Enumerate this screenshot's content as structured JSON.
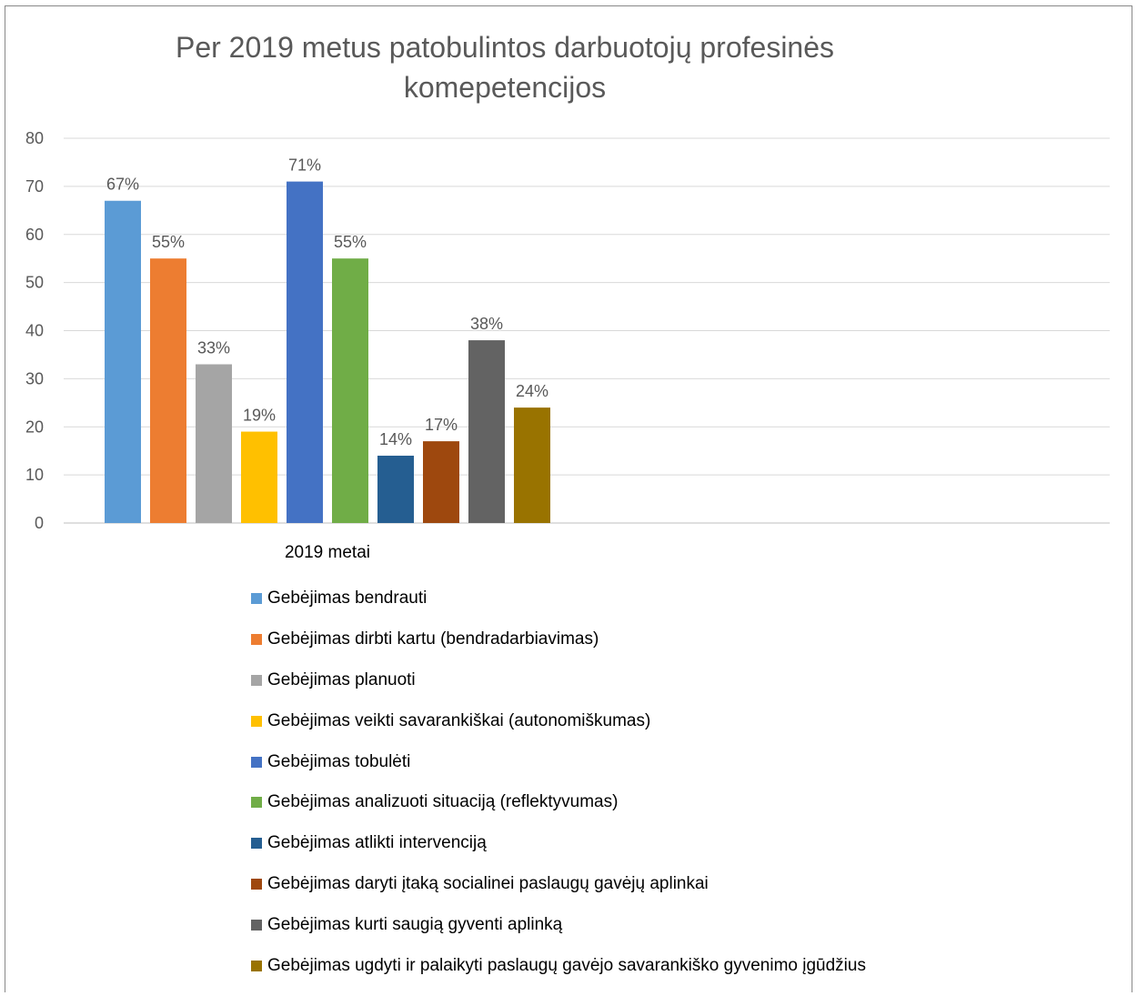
{
  "chart_data": {
    "type": "bar",
    "title": "Per 2019 metus patobulintos darbuotojų profesinės komepetencijos",
    "categories": [
      "2019 metai"
    ],
    "ylim": [
      0,
      80
    ],
    "yticks": [
      0,
      10,
      20,
      30,
      40,
      50,
      60,
      70,
      80
    ],
    "grid": true,
    "legend_position": "bottom",
    "series": [
      {
        "name": "Gebėjimas bendrauti",
        "values": [
          67
        ],
        "label": "67%",
        "color": "#5b9bd5"
      },
      {
        "name": "Gebėjimas dirbti kartu (bendradarbiavimas)",
        "values": [
          55
        ],
        "label": "55%",
        "color": "#ed7d31"
      },
      {
        "name": "Gebėjimas planuoti",
        "values": [
          33
        ],
        "label": "33%",
        "color": "#a5a5a5"
      },
      {
        "name": "Gebėjimas veikti savarankiškai (autonomiškumas)",
        "values": [
          19
        ],
        "label": "19%",
        "color": "#ffc000"
      },
      {
        "name": "Gebėjimas tobulėti",
        "values": [
          71
        ],
        "label": "71%",
        "color": "#4472c4"
      },
      {
        "name": "Gebėjimas analizuoti situaciją (reflektyvumas)",
        "values": [
          55
        ],
        "label": "55%",
        "color": "#70ad47"
      },
      {
        "name": "Gebėjimas atlikti intervenciją",
        "values": [
          14
        ],
        "label": "14%",
        "color": "#255e91"
      },
      {
        "name": "Gebėjimas daryti įtaką socialinei paslaugų gavėjų  aplinkai",
        "values": [
          17
        ],
        "label": "17%",
        "color": "#9e480e"
      },
      {
        "name": "Gebėjimas kurti saugią gyventi aplinką",
        "values": [
          38
        ],
        "label": "38%",
        "color": "#636363"
      },
      {
        "name": "Gebėjimas ugdyti ir palaikyti paslaugų gavėjo savarankiško gyvenimo įgūdžius",
        "values": [
          24
        ],
        "label": "24%",
        "color": "#997300"
      }
    ]
  }
}
